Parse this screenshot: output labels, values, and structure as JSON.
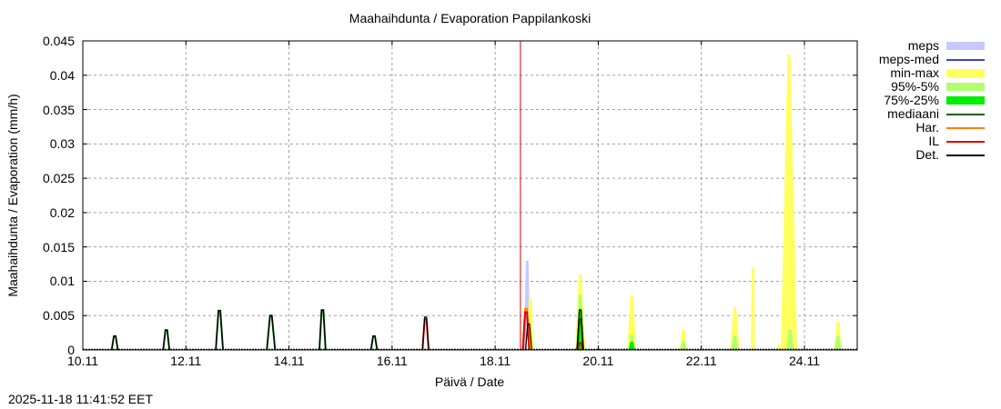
{
  "chart_data": {
    "type": "area",
    "title": "Maahaihdunta / Evaporation  Pappilankoski",
    "xlabel": "Päivä / Date",
    "ylabel": "Maahaihdunta / Evaporation (mm/h)",
    "timestamp": "2025-11-18 11:41:52 EET",
    "ylim": [
      0,
      0.045
    ],
    "xlim_days": [
      0,
      15
    ],
    "grid": true,
    "legend_position": "right",
    "now_marker_day": 8.49,
    "y_ticks": [
      "0",
      "0.005",
      "0.01",
      "0.015",
      "0.02",
      "0.025",
      "0.03",
      "0.035",
      "0.04",
      "0.045"
    ],
    "x_ticks": [
      {
        "label": "10.11",
        "day": 0
      },
      {
        "label": "12.11",
        "day": 2
      },
      {
        "label": "14.11",
        "day": 4
      },
      {
        "label": "16.11",
        "day": 6
      },
      {
        "label": "18.11",
        "day": 8
      },
      {
        "label": "20.11",
        "day": 10
      },
      {
        "label": "22.11",
        "day": 12
      },
      {
        "label": "24.11",
        "day": 14
      }
    ],
    "legend": [
      {
        "label": "meps",
        "color": "#c8c8ff",
        "kind": "band"
      },
      {
        "label": "meps-med",
        "color": "#4040d0",
        "kind": "line"
      },
      {
        "label": "min-max",
        "color": "#ffff60",
        "kind": "band"
      },
      {
        "label": "95%-5%",
        "color": "#b0ff70",
        "kind": "band"
      },
      {
        "label": "75%-25%",
        "color": "#00ee00",
        "kind": "band"
      },
      {
        "label": "mediaani",
        "color": "#006400",
        "kind": "line"
      },
      {
        "label": "Har.",
        "color": "#ff8000",
        "kind": "line"
      },
      {
        "label": "IL",
        "color": "#e00000",
        "kind": "line"
      },
      {
        "label": "Det.",
        "color": "#000000",
        "kind": "line"
      }
    ],
    "series": [
      {
        "name": "Det. (observed/history peaks)",
        "color": "#000000",
        "peaks": [
          {
            "day": 0.62,
            "value": 0.002,
            "width": 0.12
          },
          {
            "day": 1.62,
            "value": 0.0029,
            "width": 0.12
          },
          {
            "day": 2.65,
            "value": 0.0057,
            "width": 0.14
          },
          {
            "day": 3.65,
            "value": 0.005,
            "width": 0.16
          },
          {
            "day": 4.65,
            "value": 0.0058,
            "width": 0.12
          },
          {
            "day": 5.65,
            "value": 0.002,
            "width": 0.12
          },
          {
            "day": 6.65,
            "value": 0.0048,
            "width": 0.12
          },
          {
            "day": 8.65,
            "value": 0.0038,
            "width": 0.12
          },
          {
            "day": 9.65,
            "value": 0.0058,
            "width": 0.12
          }
        ]
      },
      {
        "name": "mediaani",
        "color": "#006400",
        "peaks": [
          {
            "day": 0.62,
            "value": 0.002,
            "width": 0.12
          },
          {
            "day": 1.62,
            "value": 0.0029,
            "width": 0.12
          },
          {
            "day": 2.65,
            "value": 0.0057,
            "width": 0.14
          },
          {
            "day": 3.65,
            "value": 0.005,
            "width": 0.16
          },
          {
            "day": 4.65,
            "value": 0.0058,
            "width": 0.12
          },
          {
            "day": 5.65,
            "value": 0.002,
            "width": 0.12
          },
          {
            "day": 9.65,
            "value": 0.0045,
            "width": 0.12
          }
        ]
      },
      {
        "name": "IL",
        "color": "#e00000",
        "peaks": [
          {
            "day": 6.65,
            "value": 0.0045,
            "width": 0.12
          },
          {
            "day": 8.6,
            "value": 0.0055,
            "width": 0.12
          },
          {
            "day": 9.65,
            "value": 0.001,
            "width": 0.1
          }
        ]
      },
      {
        "name": "Har.",
        "color": "#ff8000",
        "peaks": [
          {
            "day": 8.6,
            "value": 0.006,
            "width": 0.14
          }
        ]
      },
      {
        "name": "meps",
        "color": "#c8c8ff",
        "peaks": [
          {
            "day": 8.62,
            "value": 0.013,
            "width": 0.12
          }
        ]
      },
      {
        "name": "min-max",
        "color": "#ffff60",
        "peaks": [
          {
            "day": 8.68,
            "value": 0.0075,
            "width": 0.14
          },
          {
            "day": 9.65,
            "value": 0.011,
            "width": 0.2
          },
          {
            "day": 10.65,
            "value": 0.008,
            "width": 0.18
          },
          {
            "day": 11.65,
            "value": 0.003,
            "width": 0.14
          },
          {
            "day": 12.65,
            "value": 0.0062,
            "width": 0.18
          },
          {
            "day": 13.0,
            "value": 0.012,
            "width": 0.08
          },
          {
            "day": 13.5,
            "value": 0.0008,
            "width": 0.08
          },
          {
            "day": 13.7,
            "value": 0.043,
            "width": 0.32
          },
          {
            "day": 14.65,
            "value": 0.0042,
            "width": 0.14
          }
        ]
      },
      {
        "name": "95%-5%",
        "color": "#b0ff70",
        "peaks": [
          {
            "day": 9.65,
            "value": 0.008,
            "width": 0.16
          },
          {
            "day": 10.65,
            "value": 0.0022,
            "width": 0.14
          },
          {
            "day": 11.65,
            "value": 0.0012,
            "width": 0.12
          },
          {
            "day": 12.65,
            "value": 0.002,
            "width": 0.14
          },
          {
            "day": 13.72,
            "value": 0.003,
            "width": 0.14
          },
          {
            "day": 14.65,
            "value": 0.002,
            "width": 0.14
          }
        ]
      },
      {
        "name": "75%-25%",
        "color": "#00ee00",
        "peaks": [
          {
            "day": 9.65,
            "value": 0.006,
            "width": 0.14
          },
          {
            "day": 10.65,
            "value": 0.0012,
            "width": 0.12
          }
        ]
      }
    ]
  }
}
